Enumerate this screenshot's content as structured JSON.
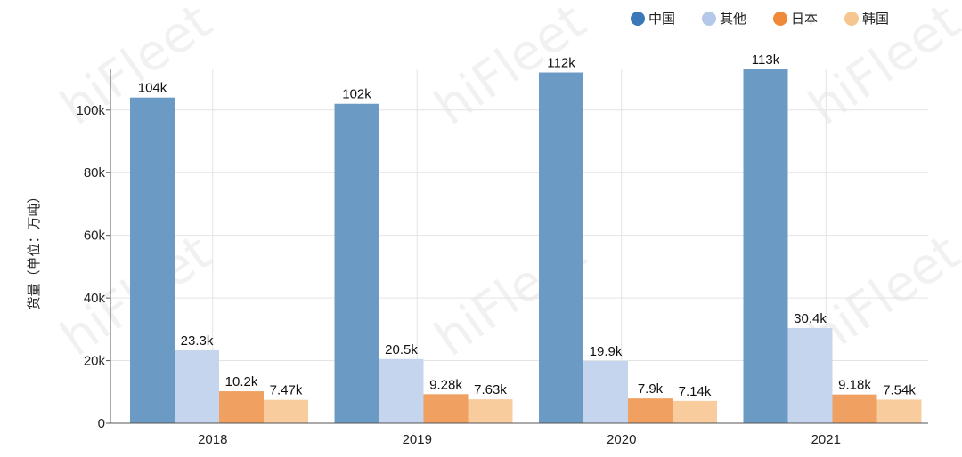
{
  "chart_data": {
    "type": "bar",
    "categories": [
      "2018",
      "2019",
      "2020",
      "2021"
    ],
    "series": [
      {
        "name": "中国",
        "values": [
          104000,
          102000,
          112000,
          113000
        ],
        "labels": [
          "104k",
          "102k",
          "112k",
          "113k"
        ],
        "color": "#6b9ac4"
      },
      {
        "name": "其他",
        "values": [
          23300,
          20500,
          19900,
          30400
        ],
        "labels": [
          "23.3k",
          "20.5k",
          "19.9k",
          "30.4k"
        ],
        "color": "#c5d5ee"
      },
      {
        "name": "日本",
        "values": [
          10200,
          9280,
          7900,
          9180
        ],
        "labels": [
          "10.2k",
          "9.28k",
          "7.9k",
          "9.18k"
        ],
        "color": "#f0a060"
      },
      {
        "name": "韩国",
        "values": [
          7470,
          7630,
          7140,
          7540
        ],
        "labels": [
          "7.47k",
          "7.63k",
          "7.14k",
          "7.54k"
        ],
        "color": "#f8cc9c"
      }
    ],
    "legend_colors": [
      "#3b78b8",
      "#b4c8ea",
      "#ee8a3a",
      "#f6c690"
    ],
    "ylabel": "货量（单位：万吨）",
    "ylim": [
      0,
      113000
    ],
    "yticks": [
      0,
      20000,
      40000,
      60000,
      80000,
      100000
    ],
    "ytick_labels": [
      "0",
      "20k",
      "40k",
      "60k",
      "80k",
      "100k"
    ],
    "grid": true,
    "legend_position": "top-right",
    "watermark": "hiFleet"
  }
}
